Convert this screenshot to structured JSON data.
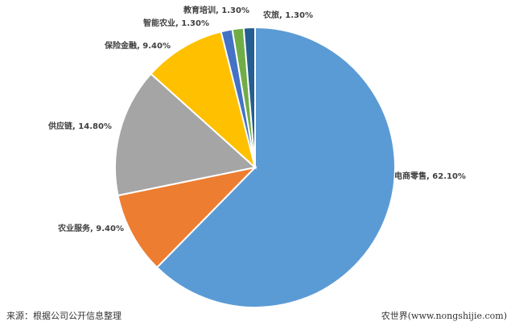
{
  "chart_data": {
    "type": "pie",
    "start_angle": "12 o'clock",
    "direction": "clockwise",
    "slices": [
      {
        "label": "电商零售",
        "value": 62.1,
        "display": "电商零售, 62.10%",
        "color": "#5b9bd5"
      },
      {
        "label": "农业服务",
        "value": 9.4,
        "display": "农业服务, 9.40%",
        "color": "#ed7d31"
      },
      {
        "label": "供应链",
        "value": 14.8,
        "display": "供应链, 14.80%",
        "color": "#a5a5a5"
      },
      {
        "label": "保险金融",
        "value": 9.4,
        "display": "保险金融, 9.40%",
        "color": "#ffc000"
      },
      {
        "label": "智能农业",
        "value": 1.3,
        "display": "智能农业, 1.30%",
        "color": "#4472c4"
      },
      {
        "label": "教育培训",
        "value": 1.3,
        "display": "教育培训, 1.30%",
        "color": "#70ad47"
      },
      {
        "label": "农旅",
        "value": 1.3,
        "display": "农旅, 1.30%",
        "color": "#255e91"
      }
    ],
    "legend": "none"
  },
  "footer": {
    "source": "来源：根据公司公开信息整理",
    "credit": "农世界(www.nongshijie.com)"
  }
}
